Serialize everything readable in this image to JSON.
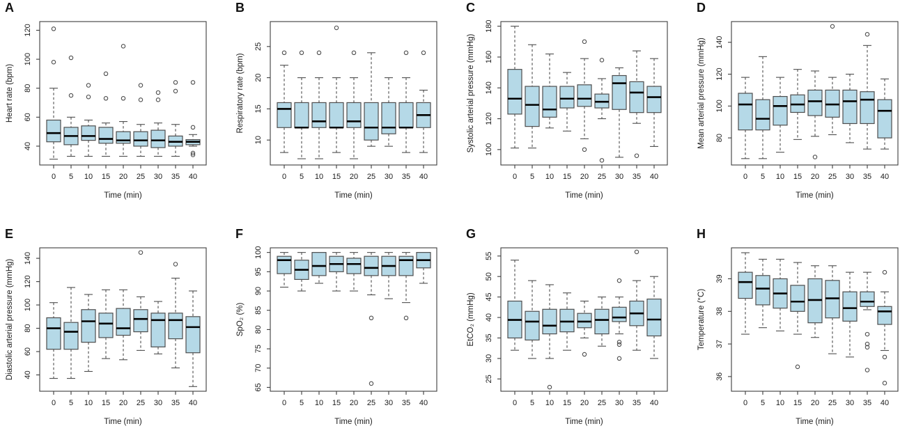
{
  "figure": {
    "background": "#ffffff"
  },
  "style": {
    "box_fill": "#b5d9e7",
    "box_stroke": "#4d4d4d",
    "median_color": "#000000",
    "whisker_color": "#4d4d4d",
    "outlier_stroke": "#4d4d4d",
    "axis_color": "#3d3d3d",
    "text_color": "#1a1a1a"
  },
  "chart_data": {
    "type": "boxplot",
    "xlabel": "Time (min)",
    "categories": [
      "0",
      "5",
      "10",
      "15",
      "20",
      "25",
      "30",
      "35",
      "40"
    ],
    "grid": false,
    "legend": "none",
    "panels": [
      {
        "panel": "A",
        "ylabel": "Heart rate (bpm)",
        "yticks": [
          40,
          60,
          80,
          100,
          120
        ],
        "ylim": [
          27,
          126
        ],
        "boxes": [
          {
            "lo": 31,
            "q1": 43,
            "med": 49,
            "q3": 58,
            "hi": 80,
            "out": [
              98,
              121
            ]
          },
          {
            "lo": 33,
            "q1": 41,
            "med": 47,
            "q3": 53,
            "hi": 60,
            "out": [
              75,
              101
            ]
          },
          {
            "lo": 33,
            "q1": 44,
            "med": 47,
            "q3": 54,
            "hi": 58,
            "out": [
              74,
              82
            ]
          },
          {
            "lo": 33,
            "q1": 42,
            "med": 45,
            "q3": 53,
            "hi": 56,
            "out": [
              73,
              90
            ]
          },
          {
            "lo": 33,
            "q1": 42,
            "med": 44,
            "q3": 50,
            "hi": 57,
            "out": [
              73,
              109
            ]
          },
          {
            "lo": 33,
            "q1": 40,
            "med": 44,
            "q3": 50,
            "hi": 55,
            "out": [
              72,
              82
            ]
          },
          {
            "lo": 33,
            "q1": 39,
            "med": 44,
            "q3": 51,
            "hi": 56,
            "out": [
              72,
              77
            ]
          },
          {
            "lo": 33,
            "q1": 40,
            "med": 43,
            "q3": 47,
            "hi": 55,
            "out": [
              78,
              84
            ]
          },
          {
            "lo": 40,
            "q1": 41,
            "med": 43,
            "q3": 44.5,
            "hi": 48,
            "out": [
              34,
              35.2,
              53,
              84
            ]
          }
        ]
      },
      {
        "panel": "B",
        "ylabel": "Respiratory rate (bpm)",
        "yticks": [
          10,
          15,
          20,
          25
        ],
        "ylim": [
          6,
          29
        ],
        "boxes": [
          {
            "lo": 8,
            "q1": 12,
            "med": 15,
            "q3": 16,
            "hi": 22,
            "out": [
              24
            ]
          },
          {
            "lo": 7,
            "q1": 12,
            "med": 12,
            "q3": 16,
            "hi": 20,
            "out": [
              24
            ]
          },
          {
            "lo": 7,
            "q1": 12,
            "med": 13,
            "q3": 16,
            "hi": 20,
            "out": [
              24
            ]
          },
          {
            "lo": 8,
            "q1": 12,
            "med": 12,
            "q3": 16,
            "hi": 20,
            "out": [
              28
            ]
          },
          {
            "lo": 7,
            "q1": 12,
            "med": 13,
            "q3": 16,
            "hi": 20,
            "out": [
              24
            ]
          },
          {
            "lo": 9,
            "q1": 10,
            "med": 12,
            "q3": 16,
            "hi": 24,
            "out": []
          },
          {
            "lo": 9,
            "q1": 11,
            "med": 12,
            "q3": 16,
            "hi": 20,
            "out": []
          },
          {
            "lo": 8,
            "q1": 12,
            "med": 12,
            "q3": 16,
            "hi": 20,
            "out": [
              24
            ]
          },
          {
            "lo": 8,
            "q1": 12,
            "med": 14,
            "q3": 16,
            "hi": 18,
            "out": [
              24
            ]
          }
        ]
      },
      {
        "panel": "C",
        "ylabel": "Systolic arterial pressure (mmHg)",
        "yticks": [
          100,
          120,
          140,
          160,
          180
        ],
        "ylim": [
          90,
          183
        ],
        "boxes": [
          {
            "lo": 101,
            "q1": 123,
            "med": 133,
            "q3": 152,
            "hi": 180,
            "out": []
          },
          {
            "lo": 101,
            "q1": 115,
            "med": 129,
            "q3": 141,
            "hi": 168,
            "out": []
          },
          {
            "lo": 114,
            "q1": 121,
            "med": 126,
            "q3": 141,
            "hi": 162,
            "out": []
          },
          {
            "lo": 112,
            "q1": 127,
            "med": 133,
            "q3": 141,
            "hi": 150,
            "out": []
          },
          {
            "lo": 107,
            "q1": 128,
            "med": 133,
            "q3": 142,
            "hi": 159,
            "out": [
              100,
              170
            ]
          },
          {
            "lo": 120,
            "q1": 127,
            "med": 131,
            "q3": 136,
            "hi": 146,
            "out": [
              93,
              158
            ]
          },
          {
            "lo": 95,
            "q1": 126,
            "med": 143,
            "q3": 148,
            "hi": 153,
            "out": []
          },
          {
            "lo": 117,
            "q1": 124,
            "med": 137,
            "q3": 144,
            "hi": 164,
            "out": [
              96
            ]
          },
          {
            "lo": 102,
            "q1": 124,
            "med": 134,
            "q3": 141,
            "hi": 159,
            "out": []
          }
        ]
      },
      {
        "panel": "D",
        "ylabel": "Mean arterial pressure (mmHg)",
        "yticks": [
          80,
          100,
          120,
          140
        ],
        "ylim": [
          63,
          153
        ],
        "boxes": [
          {
            "lo": 67,
            "q1": 85,
            "med": 101,
            "q3": 108,
            "hi": 118,
            "out": []
          },
          {
            "lo": 67,
            "q1": 85,
            "med": 92,
            "q3": 104,
            "hi": 131,
            "out": []
          },
          {
            "lo": 71,
            "q1": 88,
            "med": 100,
            "q3": 106,
            "hi": 118,
            "out": []
          },
          {
            "lo": 79,
            "q1": 96,
            "med": 101,
            "q3": 107,
            "hi": 123,
            "out": []
          },
          {
            "lo": 81,
            "q1": 94,
            "med": 103,
            "q3": 110,
            "hi": 122,
            "out": [
              68
            ]
          },
          {
            "lo": 82,
            "q1": 93,
            "med": 101,
            "q3": 110,
            "hi": 118,
            "out": [
              150
            ]
          },
          {
            "lo": 77,
            "q1": 89,
            "med": 103,
            "q3": 110,
            "hi": 120,
            "out": []
          },
          {
            "lo": 73,
            "q1": 89,
            "med": 104,
            "q3": 109,
            "hi": 138,
            "out": [
              145
            ]
          },
          {
            "lo": 73,
            "q1": 80,
            "med": 97,
            "q3": 104,
            "hi": 117,
            "out": []
          }
        ]
      },
      {
        "panel": "E",
        "ylabel": "Diastolic arterial pressure (mmHg)",
        "yticks": [
          40,
          60,
          80,
          100,
          120,
          140
        ],
        "ylim": [
          26,
          149
        ],
        "boxes": [
          {
            "lo": 37,
            "q1": 62,
            "med": 80,
            "q3": 89,
            "hi": 102,
            "out": []
          },
          {
            "lo": 37,
            "q1": 62,
            "med": 77,
            "q3": 85,
            "hi": 115,
            "out": []
          },
          {
            "lo": 43,
            "q1": 68,
            "med": 86,
            "q3": 96,
            "hi": 109,
            "out": []
          },
          {
            "lo": 54,
            "q1": 72,
            "med": 84,
            "q3": 93,
            "hi": 113,
            "out": []
          },
          {
            "lo": 53,
            "q1": 74,
            "med": 80,
            "q3": 97,
            "hi": 113,
            "out": []
          },
          {
            "lo": 61,
            "q1": 77,
            "med": 88,
            "q3": 96,
            "hi": 107,
            "out": [
              145
            ]
          },
          {
            "lo": 58,
            "q1": 64,
            "med": 87,
            "q3": 93,
            "hi": 103,
            "out": []
          },
          {
            "lo": 46,
            "q1": 71,
            "med": 87,
            "q3": 93,
            "hi": 123,
            "out": [
              135
            ]
          },
          {
            "lo": 30,
            "q1": 59,
            "med": 81,
            "q3": 90,
            "hi": 112,
            "out": []
          }
        ]
      },
      {
        "panel": "F",
        "ylabel": "SpO₂ (%)",
        "yticks": [
          65,
          70,
          75,
          80,
          85,
          90,
          95,
          100
        ],
        "ylim": [
          64,
          101.2
        ],
        "boxes": [
          {
            "lo": 91,
            "q1": 94.5,
            "med": 98,
            "q3": 99,
            "hi": 100,
            "out": []
          },
          {
            "lo": 90,
            "q1": 93,
            "med": 95.5,
            "q3": 98,
            "hi": 100,
            "out": []
          },
          {
            "lo": 92,
            "q1": 94,
            "med": 96.5,
            "q3": 100,
            "hi": 100,
            "out": []
          },
          {
            "lo": 90,
            "q1": 95,
            "med": 97,
            "q3": 99,
            "hi": 100,
            "out": []
          },
          {
            "lo": 90,
            "q1": 94.5,
            "med": 97,
            "q3": 98.5,
            "hi": 100,
            "out": []
          },
          {
            "lo": 89,
            "q1": 94,
            "med": 96,
            "q3": 99,
            "hi": 100,
            "out": [
              83,
              66
            ]
          },
          {
            "lo": 88,
            "q1": 94,
            "med": 96.5,
            "q3": 99,
            "hi": 100,
            "out": []
          },
          {
            "lo": 87,
            "q1": 94,
            "med": 98,
            "q3": 99,
            "hi": 100,
            "out": [
              83
            ]
          },
          {
            "lo": 92,
            "q1": 96,
            "med": 98,
            "q3": 100,
            "hi": 100,
            "out": []
          }
        ]
      },
      {
        "panel": "G",
        "ylabel": "EtCO₂ (mmHg)",
        "yticks": [
          25,
          30,
          35,
          40,
          45,
          50,
          55
        ],
        "ylim": [
          22,
          57
        ],
        "boxes": [
          {
            "lo": 32,
            "q1": 35,
            "med": 39.4,
            "q3": 44,
            "hi": 54,
            "out": []
          },
          {
            "lo": 30,
            "q1": 34.5,
            "med": 39,
            "q3": 41.5,
            "hi": 49,
            "out": []
          },
          {
            "lo": 30,
            "q1": 36,
            "med": 38,
            "q3": 42,
            "hi": 48,
            "out": [
              23
            ]
          },
          {
            "lo": 32,
            "q1": 36.5,
            "med": 39,
            "q3": 42,
            "hi": 46,
            "out": []
          },
          {
            "lo": 35,
            "q1": 37.5,
            "med": 39,
            "q3": 41,
            "hi": 44,
            "out": [
              31
            ]
          },
          {
            "lo": 33,
            "q1": 36,
            "med": 39.4,
            "q3": 42,
            "hi": 45,
            "out": []
          },
          {
            "lo": 36,
            "q1": 39,
            "med": 40,
            "q3": 42.5,
            "hi": 45,
            "out": [
              49,
              34,
              33.4,
              30
            ]
          },
          {
            "lo": 32,
            "q1": 38,
            "med": 41,
            "q3": 44,
            "hi": 49,
            "out": [
              56
            ]
          },
          {
            "lo": 30,
            "q1": 35.5,
            "med": 39.5,
            "q3": 44.5,
            "hi": 50,
            "out": []
          }
        ]
      },
      {
        "panel": "H",
        "ylabel": "Temperature (°C)",
        "yticks": [
          36,
          37,
          38,
          39
        ],
        "ylim": [
          35.55,
          39.95
        ],
        "boxes": [
          {
            "lo": 37.3,
            "q1": 38.4,
            "med": 38.9,
            "q3": 39.2,
            "hi": 39.8,
            "out": []
          },
          {
            "lo": 37.5,
            "q1": 38.2,
            "med": 38.7,
            "q3": 39.1,
            "hi": 39.6,
            "out": []
          },
          {
            "lo": 37.4,
            "q1": 38.1,
            "med": 38.55,
            "q3": 39.0,
            "hi": 39.6,
            "out": []
          },
          {
            "lo": 37.3,
            "q1": 38.0,
            "med": 38.3,
            "q3": 38.8,
            "hi": 39.5,
            "out": [
              36.3
            ]
          },
          {
            "lo": 37.2,
            "q1": 37.65,
            "med": 38.35,
            "q3": 39.0,
            "hi": 39.4,
            "out": []
          },
          {
            "lo": 36.7,
            "q1": 37.8,
            "med": 38.4,
            "q3": 38.95,
            "hi": 39.4,
            "out": []
          },
          {
            "lo": 36.6,
            "q1": 37.7,
            "med": 38.1,
            "q3": 38.6,
            "hi": 39.2,
            "out": []
          },
          {
            "lo": 38.05,
            "q1": 38.15,
            "med": 38.3,
            "q3": 38.6,
            "hi": 39.2,
            "out": [
              37.3,
              37.0,
              36.9,
              36.2
            ]
          },
          {
            "lo": 36.8,
            "q1": 37.6,
            "med": 38.0,
            "q3": 38.15,
            "hi": 38.6,
            "out": [
              39.2,
              36.6,
              35.8
            ]
          }
        ]
      }
    ]
  }
}
